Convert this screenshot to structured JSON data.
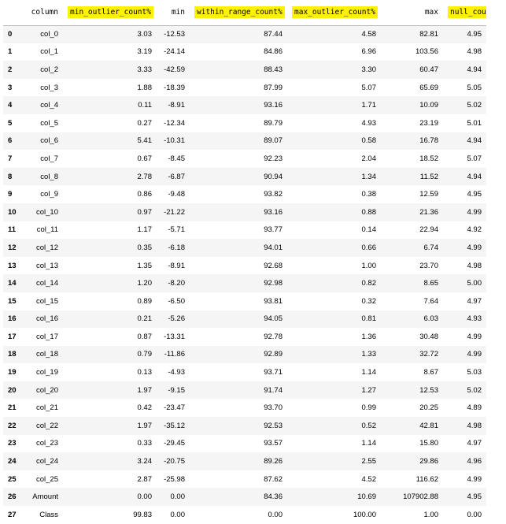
{
  "table": {
    "headers": [
      "",
      "column",
      "min_outlier_count%",
      "min",
      "within_range_count%",
      "max_outlier_count%",
      "max",
      "null_count%"
    ],
    "highlighted_headers": [
      "min_outlier_count%",
      "within_range_count%",
      "max_outlier_count%",
      "null_count%"
    ],
    "highlight_color": "#fff200",
    "rows": [
      [
        "0",
        "col_0",
        "3.03",
        "-12.53",
        "87.44",
        "4.58",
        "82.81",
        "4.95"
      ],
      [
        "1",
        "col_1",
        "3.19",
        "-24.14",
        "84.86",
        "6.96",
        "103.56",
        "4.98"
      ],
      [
        "2",
        "col_2",
        "3.33",
        "-42.59",
        "88.43",
        "3.30",
        "60.47",
        "4.94"
      ],
      [
        "3",
        "col_3",
        "1.88",
        "-18.39",
        "87.99",
        "5.07",
        "65.69",
        "5.05"
      ],
      [
        "4",
        "col_4",
        "0.11",
        "-8.91",
        "93.16",
        "1.71",
        "10.09",
        "5.02"
      ],
      [
        "5",
        "col_5",
        "0.27",
        "-12.34",
        "89.79",
        "4.93",
        "23.19",
        "5.01"
      ],
      [
        "6",
        "col_6",
        "5.41",
        "-10.31",
        "89.07",
        "0.58",
        "16.78",
        "4.94"
      ],
      [
        "7",
        "col_7",
        "0.67",
        "-8.45",
        "92.23",
        "2.04",
        "18.52",
        "5.07"
      ],
      [
        "8",
        "col_8",
        "2.78",
        "-6.87",
        "90.94",
        "1.34",
        "11.52",
        "4.94"
      ],
      [
        "9",
        "col_9",
        "0.86",
        "-9.48",
        "93.82",
        "0.38",
        "12.59",
        "4.95"
      ],
      [
        "10",
        "col_10",
        "0.97",
        "-21.22",
        "93.16",
        "0.88",
        "21.36",
        "4.99"
      ],
      [
        "11",
        "col_11",
        "1.17",
        "-5.71",
        "93.77",
        "0.14",
        "22.94",
        "4.92"
      ],
      [
        "12",
        "col_12",
        "0.35",
        "-6.18",
        "94.01",
        "0.66",
        "6.74",
        "4.99"
      ],
      [
        "13",
        "col_13",
        "1.35",
        "-8.91",
        "92.68",
        "1.00",
        "23.70",
        "4.98"
      ],
      [
        "14",
        "col_14",
        "1.20",
        "-8.20",
        "92.98",
        "0.82",
        "8.65",
        "5.00"
      ],
      [
        "15",
        "col_15",
        "0.89",
        "-6.50",
        "93.81",
        "0.32",
        "7.64",
        "4.97"
      ],
      [
        "16",
        "col_16",
        "0.21",
        "-5.26",
        "94.05",
        "0.81",
        "6.03",
        "4.93"
      ],
      [
        "17",
        "col_17",
        "0.87",
        "-13.31",
        "92.78",
        "1.36",
        "30.48",
        "4.99"
      ],
      [
        "18",
        "col_18",
        "0.79",
        "-11.86",
        "92.89",
        "1.33",
        "32.72",
        "4.99"
      ],
      [
        "19",
        "col_19",
        "0.13",
        "-4.93",
        "93.71",
        "1.14",
        "8.67",
        "5.03"
      ],
      [
        "20",
        "col_20",
        "1.97",
        "-9.15",
        "91.74",
        "1.27",
        "12.53",
        "5.02"
      ],
      [
        "21",
        "col_21",
        "0.42",
        "-23.47",
        "93.70",
        "0.99",
        "20.25",
        "4.89"
      ],
      [
        "22",
        "col_22",
        "1.97",
        "-35.12",
        "92.53",
        "0.52",
        "42.81",
        "4.98"
      ],
      [
        "23",
        "col_23",
        "0.33",
        "-29.45",
        "93.57",
        "1.14",
        "15.80",
        "4.97"
      ],
      [
        "24",
        "col_24",
        "3.24",
        "-20.75",
        "89.26",
        "2.55",
        "29.86",
        "4.96"
      ],
      [
        "25",
        "col_25",
        "2.87",
        "-25.98",
        "87.62",
        "4.52",
        "116.62",
        "4.99"
      ],
      [
        "26",
        "Amount",
        "0.00",
        "0.00",
        "84.36",
        "10.69",
        "107902.88",
        "4.95"
      ],
      [
        "27",
        "Class",
        "99.83",
        "0.00",
        "0.00",
        "100.00",
        "1.00",
        "0.00"
      ]
    ]
  }
}
